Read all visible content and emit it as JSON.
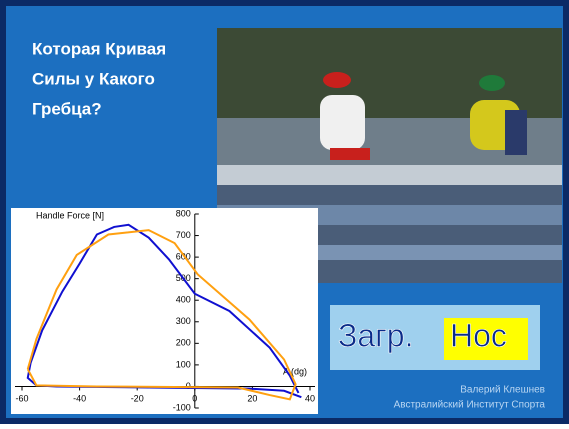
{
  "slide": {
    "title_lines": [
      "Которая Кривая",
      "Силы у Какого",
      "Гребца?"
    ],
    "label": {
      "prefix": "Загр.",
      "highlight": "Нос"
    },
    "credits": [
      "Валерий Клешнев",
      "Австралийский Институт Спорта"
    ]
  },
  "chart_data": {
    "type": "line",
    "y_label": "Handle Force [N]",
    "x_label": "A (dg)",
    "xlim": [
      -60,
      40
    ],
    "xticks": [
      -60,
      -40,
      -20,
      0,
      20,
      40
    ],
    "ylim": [
      -100,
      800
    ],
    "yticks": [
      -100,
      0,
      100,
      200,
      300,
      400,
      500,
      600,
      700,
      800
    ],
    "series": [
      {
        "color": "#1010d0",
        "x": [
          36,
          33,
          26,
          12,
          0,
          -9,
          -16,
          -23,
          -28,
          -34,
          -40,
          -46,
          -53,
          -57,
          -58,
          -55,
          -48,
          -16,
          19,
          31,
          37
        ],
        "values": [
          -30,
          50,
          180,
          350,
          430,
          590,
          690,
          750,
          740,
          705,
          570,
          440,
          260,
          110,
          40,
          5,
          0,
          -5,
          -10,
          -20,
          -50
        ]
      },
      {
        "color": "#ffa010",
        "x": [
          -58,
          -55,
          -48,
          -41,
          -30,
          -16,
          -7,
          1,
          19,
          31,
          35,
          33,
          26,
          15,
          -34,
          -55,
          -58
        ],
        "values": [
          80,
          220,
          450,
          610,
          705,
          725,
          665,
          520,
          310,
          125,
          10,
          -60,
          -40,
          -5,
          0,
          5,
          80
        ]
      }
    ]
  }
}
